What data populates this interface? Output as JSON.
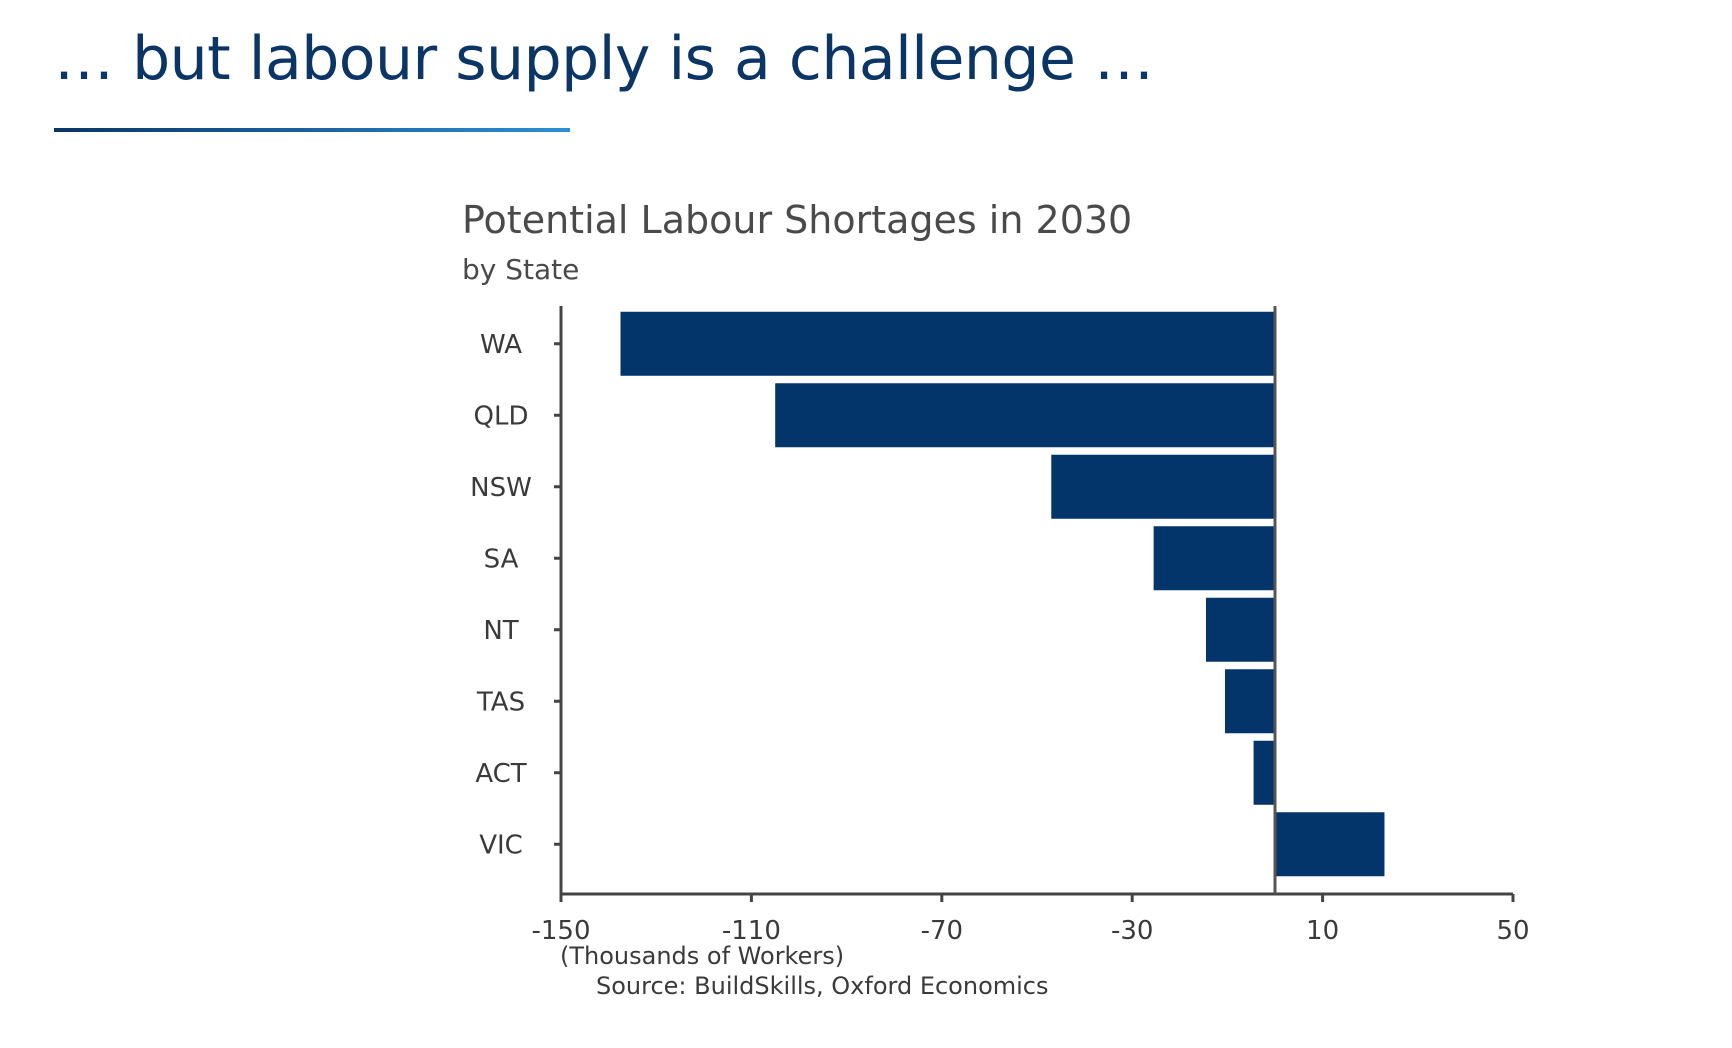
{
  "slide": {
    "title": "… but labour supply is a challenge …"
  },
  "colors": {
    "title": "#0a3565",
    "bar": "#03346a",
    "axis": "#444444",
    "zero_line": "#555555"
  },
  "chart_data": {
    "type": "bar",
    "orientation": "horizontal",
    "title": "Potential Labour Shortages in 2030",
    "subtitle": "by State",
    "categories": [
      "WA",
      "QLD",
      "NSW",
      "SA",
      "NT",
      "TAS",
      "ACT",
      "VIC"
    ],
    "values": [
      -137.5,
      -105,
      -47,
      -25.5,
      -14.5,
      -10.5,
      -4.5,
      23
    ],
    "xlim": [
      -150,
      50
    ],
    "xticks": [
      -150,
      -110,
      -70,
      -30,
      10,
      50
    ],
    "xlabel": "(Thousands of Workers)",
    "source": "Source: BuildSkills, Oxford Economics",
    "grid": false,
    "legend": "none"
  }
}
